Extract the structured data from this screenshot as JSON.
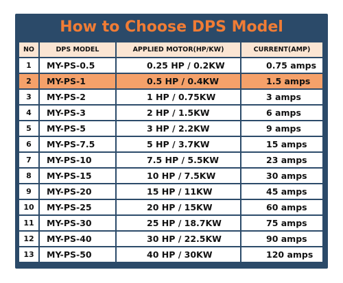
{
  "title": "How to Choose DPS Model",
  "colors": {
    "frame": "#2b4a69",
    "title": "#f07c35",
    "header_bg": "#fbe5d3",
    "highlight_row": "#f5a16a"
  },
  "table": {
    "headers": [
      "NO",
      "DPS MODEL",
      "APPLIED MOTOR(HP/KW)",
      "CURRENT(AMP)"
    ],
    "highlighted_row": 2,
    "rows": [
      {
        "no": "1",
        "model": "MY-PS-0.5",
        "motor": "0.25 HP / 0.2KW",
        "current": "0.75 amps"
      },
      {
        "no": "2",
        "model": "MY-PS-1",
        "motor": "0.5 HP / 0.4KW",
        "current": "1.5 amps"
      },
      {
        "no": "3",
        "model": "MY-PS-2",
        "motor": "1 HP / 0.75KW",
        "current": "3 amps"
      },
      {
        "no": "4",
        "model": "MY-PS-3",
        "motor": "2 HP / 1.5KW",
        "current": "6 amps"
      },
      {
        "no": "5",
        "model": "MY-PS-5",
        "motor": "3 HP / 2.2KW",
        "current": "9 amps"
      },
      {
        "no": "6",
        "model": "MY-PS-7.5",
        "motor": "5 HP / 3.7KW",
        "current": "15 amps"
      },
      {
        "no": "7",
        "model": "MY-PS-10",
        "motor": "7.5 HP / 5.5KW",
        "current": "23 amps"
      },
      {
        "no": "8",
        "model": "MY-PS-15",
        "motor": "10 HP / 7.5KW",
        "current": "30 amps"
      },
      {
        "no": "9",
        "model": "MY-PS-20",
        "motor": "15 HP / 11KW",
        "current": "45 amps"
      },
      {
        "no": "10",
        "model": "MY-PS-25",
        "motor": "20 HP / 15KW",
        "current": "60 amps"
      },
      {
        "no": "11",
        "model": "MY-PS-30",
        "motor": "25 HP / 18.7KW",
        "current": "75 amps"
      },
      {
        "no": "12",
        "model": "MY-PS-40",
        "motor": "30 HP / 22.5KW",
        "current": "90 amps"
      },
      {
        "no": "13",
        "model": "MY-PS-50",
        "motor": "40 HP / 30KW",
        "current": "120 amps"
      }
    ]
  }
}
